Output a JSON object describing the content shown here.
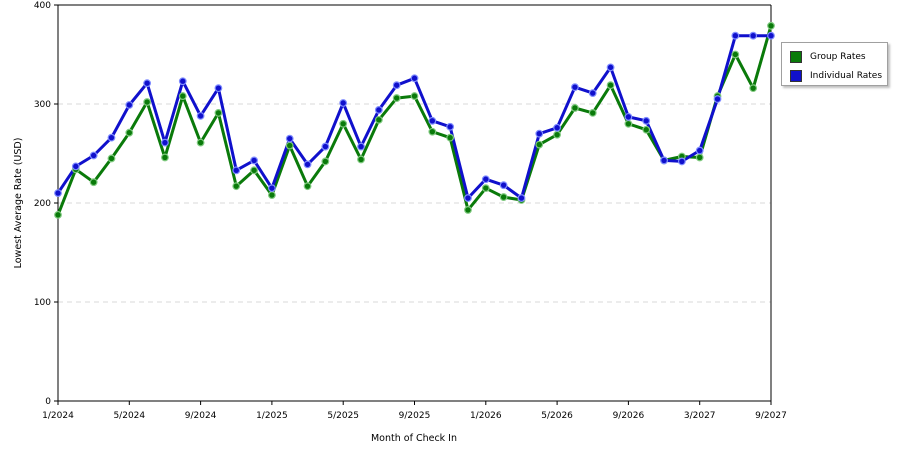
{
  "chart_data": {
    "type": "line",
    "xlabel": "Month of Check In",
    "ylabel": "Lowest Average Rate (USD)",
    "ylim": [
      0,
      400
    ],
    "yticks": [
      0,
      100,
      200,
      300,
      400
    ],
    "grid": true,
    "legend_position": "right",
    "x_tick_labels": [
      {
        "index": 0,
        "label": "1/2024"
      },
      {
        "index": 4,
        "label": "5/2024"
      },
      {
        "index": 8,
        "label": "9/2024"
      },
      {
        "index": 12,
        "label": "1/2025"
      },
      {
        "index": 16,
        "label": "5/2025"
      },
      {
        "index": 20,
        "label": "9/2025"
      },
      {
        "index": 24,
        "label": "1/2026"
      },
      {
        "index": 28,
        "label": "5/2026"
      },
      {
        "index": 32,
        "label": "9/2026"
      },
      {
        "index": 36,
        "label": "3/2027"
      },
      {
        "index": 40,
        "label": "9/2027"
      }
    ],
    "series": [
      {
        "name": "Group Rates",
        "color": "#0a7a0a",
        "values": [
          188,
          234,
          221,
          245,
          271,
          302,
          246,
          308,
          261,
          291,
          217,
          233,
          208,
          258,
          217,
          242,
          280,
          244,
          284,
          306,
          308,
          272,
          266,
          193,
          215,
          206,
          203,
          259,
          269,
          296,
          291,
          319,
          280,
          274,
          243,
          247,
          246,
          308,
          350,
          316,
          379
        ]
      },
      {
        "name": "Individual Rates",
        "color": "#1010cc",
        "values": [
          210,
          237,
          248,
          266,
          299,
          321,
          261,
          323,
          288,
          316,
          233,
          243,
          215,
          265,
          239,
          257,
          301,
          257,
          294,
          319,
          326,
          283,
          277,
          205,
          224,
          218,
          205,
          270,
          276,
          317,
          311,
          337,
          287,
          283,
          243,
          242,
          253,
          305,
          369,
          369,
          369
        ]
      }
    ]
  }
}
